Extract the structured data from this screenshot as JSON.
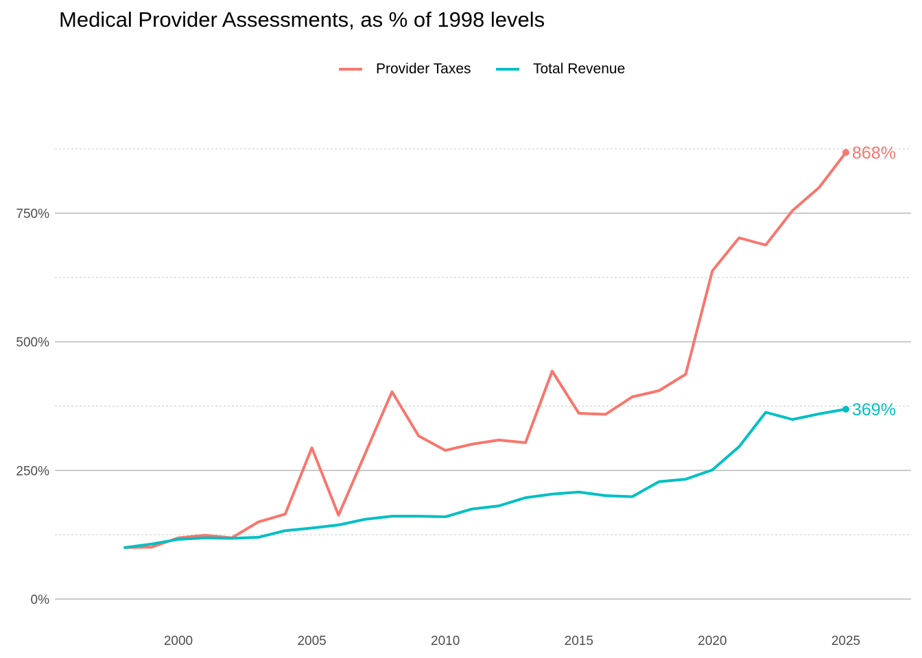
{
  "chart_data": {
    "type": "line",
    "title": "Medical Provider Assessments, as % of 1998 levels",
    "xlabel": "",
    "ylabel": "",
    "xlim": [
      1995.5,
      2027.5
    ],
    "ylim": [
      0,
      900
    ],
    "x_ticks": [
      2000,
      2005,
      2010,
      2015,
      2020,
      2025
    ],
    "x_tick_labels": [
      "2000",
      "2005",
      "2010",
      "2015",
      "2020",
      "2025"
    ],
    "y_ticks": [
      0,
      250,
      500,
      750
    ],
    "y_tick_labels": [
      "0%",
      "250%",
      "500%",
      "750%"
    ],
    "y_minor_ticks": [
      125,
      375,
      625,
      875
    ],
    "grid": true,
    "legend_position": "top",
    "x": [
      1998,
      1999,
      2000,
      2001,
      2002,
      2003,
      2004,
      2005,
      2006,
      2007,
      2008,
      2009,
      2010,
      2011,
      2012,
      2013,
      2014,
      2015,
      2016,
      2017,
      2018,
      2019,
      2020,
      2021,
      2022,
      2023,
      2024,
      2025
    ],
    "series": [
      {
        "name": "Provider Taxes",
        "color": "#F8766D",
        "values": [
          100,
          101,
          119,
          124,
          119,
          150,
          165,
          294,
          163,
          283,
          403,
          317,
          289,
          301,
          309,
          304,
          443,
          361,
          359,
          393,
          405,
          437,
          638,
          702,
          688,
          755,
          800,
          868
        ],
        "end_label": "868%"
      },
      {
        "name": "Total Revenue",
        "color": "#00BFC4",
        "values": [
          100,
          107,
          116,
          119,
          118,
          120,
          133,
          138,
          144,
          155,
          161,
          161,
          160,
          175,
          181,
          197,
          204,
          208,
          201,
          199,
          228,
          233,
          251,
          296,
          363,
          349,
          360,
          369
        ],
        "end_label": "369%"
      }
    ]
  }
}
